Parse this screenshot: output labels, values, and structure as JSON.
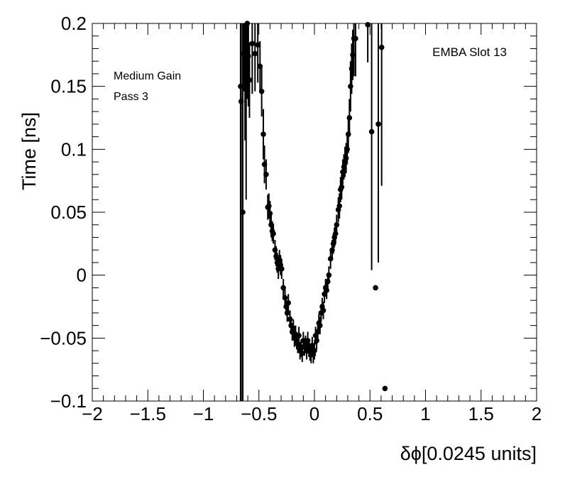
{
  "chart_data": {
    "type": "scatter",
    "title": "",
    "xlabel": "δϕ[0.0245 units]",
    "ylabel": "Time [ns]",
    "xlim": [
      -2,
      2
    ],
    "ylim": [
      -0.1,
      0.2
    ],
    "x_ticks": [
      "−2",
      "−1.5",
      "−1",
      "−0.5",
      "0",
      "0.5",
      "1",
      "1.5",
      "2"
    ],
    "y_ticks": [
      "−0.1",
      "−0.05",
      "0",
      "0.05",
      "0.1",
      "0.15",
      "0.2"
    ],
    "annotations": {
      "gain": "Medium Gain",
      "pass": "Pass 3",
      "slot": "EMBA Slot 13"
    },
    "grid": false,
    "legend": "none",
    "marker_color": "#000000",
    "points": [
      {
        "x": -0.665,
        "y": 0.15,
        "err": 0.3
      },
      {
        "x": -0.66,
        "y": 0.138,
        "err": 0.3
      },
      {
        "x": -0.645,
        "y": 0.05,
        "err": 0.3
      },
      {
        "x": -0.635,
        "y": 0.176,
        "err": 0.03
      },
      {
        "x": -0.625,
        "y": 0.197,
        "err": 0.09
      },
      {
        "x": -0.615,
        "y": 0.18,
        "err": 0.12
      },
      {
        "x": -0.605,
        "y": 0.2,
        "err": 0.06
      },
      {
        "x": -0.595,
        "y": 0.174,
        "err": 0.04
      },
      {
        "x": -0.585,
        "y": 0.155,
        "err": 0.03
      },
      {
        "x": -0.56,
        "y": 0.184,
        "err": 0.04
      },
      {
        "x": -0.535,
        "y": 0.176,
        "err": 0.03
      },
      {
        "x": -0.51,
        "y": 0.183,
        "err": 0.03
      },
      {
        "x": -0.49,
        "y": 0.166,
        "err": 0.02
      },
      {
        "x": -0.475,
        "y": 0.146,
        "err": 0.02
      },
      {
        "x": -0.46,
        "y": 0.112,
        "err": 0.02
      },
      {
        "x": -0.45,
        "y": 0.088,
        "err": 0.015
      },
      {
        "x": -0.435,
        "y": 0.08,
        "err": 0.012
      },
      {
        "x": -0.42,
        "y": 0.054,
        "err": 0.01
      },
      {
        "x": -0.41,
        "y": 0.055,
        "err": 0.01
      },
      {
        "x": -0.4,
        "y": 0.049,
        "err": 0.01
      },
      {
        "x": -0.39,
        "y": 0.04,
        "err": 0.01
      },
      {
        "x": -0.38,
        "y": 0.035,
        "err": 0.008
      },
      {
        "x": -0.37,
        "y": 0.033,
        "err": 0.008
      },
      {
        "x": -0.355,
        "y": 0.02,
        "err": 0.008
      },
      {
        "x": -0.345,
        "y": 0.015,
        "err": 0.008
      },
      {
        "x": -0.335,
        "y": 0.01,
        "err": 0.008
      },
      {
        "x": -0.325,
        "y": 0.005,
        "err": 0.008
      },
      {
        "x": -0.315,
        "y": 0.012,
        "err": 0.008
      },
      {
        "x": -0.305,
        "y": 0.008,
        "err": 0.008
      },
      {
        "x": -0.295,
        "y": 0.005,
        "err": 0.008
      },
      {
        "x": -0.28,
        "y": -0.01,
        "err": 0.007
      },
      {
        "x": -0.265,
        "y": -0.018,
        "err": 0.007
      },
      {
        "x": -0.255,
        "y": -0.025,
        "err": 0.007
      },
      {
        "x": -0.245,
        "y": -0.03,
        "err": 0.007
      },
      {
        "x": -0.235,
        "y": -0.022,
        "err": 0.007
      },
      {
        "x": -0.22,
        "y": -0.035,
        "err": 0.007
      },
      {
        "x": -0.21,
        "y": -0.04,
        "err": 0.007
      },
      {
        "x": -0.2,
        "y": -0.045,
        "err": 0.007
      },
      {
        "x": -0.19,
        "y": -0.042,
        "err": 0.007
      },
      {
        "x": -0.18,
        "y": -0.05,
        "err": 0.007
      },
      {
        "x": -0.17,
        "y": -0.047,
        "err": 0.007
      },
      {
        "x": -0.16,
        "y": -0.052,
        "err": 0.007
      },
      {
        "x": -0.15,
        "y": -0.055,
        "err": 0.007
      },
      {
        "x": -0.14,
        "y": -0.048,
        "err": 0.007
      },
      {
        "x": -0.13,
        "y": -0.06,
        "err": 0.007
      },
      {
        "x": -0.12,
        "y": -0.058,
        "err": 0.007
      },
      {
        "x": -0.11,
        "y": -0.062,
        "err": 0.007
      },
      {
        "x": -0.1,
        "y": -0.052,
        "err": 0.007
      },
      {
        "x": -0.09,
        "y": -0.057,
        "err": 0.007
      },
      {
        "x": -0.08,
        "y": -0.055,
        "err": 0.007
      },
      {
        "x": -0.07,
        "y": -0.06,
        "err": 0.007
      },
      {
        "x": -0.06,
        "y": -0.052,
        "err": 0.007
      },
      {
        "x": -0.05,
        "y": -0.058,
        "err": 0.007
      },
      {
        "x": -0.04,
        "y": -0.061,
        "err": 0.007
      },
      {
        "x": -0.03,
        "y": -0.063,
        "err": 0.007
      },
      {
        "x": -0.02,
        "y": -0.056,
        "err": 0.007
      },
      {
        "x": -0.01,
        "y": -0.063,
        "err": 0.007
      },
      {
        "x": 0.0,
        "y": -0.06,
        "err": 0.007
      },
      {
        "x": 0.01,
        "y": -0.048,
        "err": 0.007
      },
      {
        "x": 0.02,
        "y": -0.052,
        "err": 0.007
      },
      {
        "x": 0.03,
        "y": -0.045,
        "err": 0.007
      },
      {
        "x": 0.04,
        "y": -0.038,
        "err": 0.007
      },
      {
        "x": 0.05,
        "y": -0.04,
        "err": 0.007
      },
      {
        "x": 0.06,
        "y": -0.03,
        "err": 0.007
      },
      {
        "x": 0.07,
        "y": -0.025,
        "err": 0.007
      },
      {
        "x": 0.08,
        "y": -0.028,
        "err": 0.007
      },
      {
        "x": 0.09,
        "y": -0.015,
        "err": 0.007
      },
      {
        "x": 0.1,
        "y": -0.01,
        "err": 0.007
      },
      {
        "x": 0.11,
        "y": -0.012,
        "err": 0.007
      },
      {
        "x": 0.12,
        "y": -0.005,
        "err": 0.007
      },
      {
        "x": 0.13,
        "y": 0.0,
        "err": 0.007
      },
      {
        "x": 0.145,
        "y": 0.013,
        "err": 0.008
      },
      {
        "x": 0.16,
        "y": 0.02,
        "err": 0.008
      },
      {
        "x": 0.17,
        "y": 0.025,
        "err": 0.008
      },
      {
        "x": 0.18,
        "y": 0.03,
        "err": 0.008
      },
      {
        "x": 0.19,
        "y": 0.033,
        "err": 0.008
      },
      {
        "x": 0.2,
        "y": 0.04,
        "err": 0.008
      },
      {
        "x": 0.215,
        "y": 0.052,
        "err": 0.01
      },
      {
        "x": 0.225,
        "y": 0.055,
        "err": 0.01
      },
      {
        "x": 0.235,
        "y": 0.068,
        "err": 0.01
      },
      {
        "x": 0.245,
        "y": 0.07,
        "err": 0.01
      },
      {
        "x": 0.255,
        "y": 0.082,
        "err": 0.01
      },
      {
        "x": 0.265,
        "y": 0.086,
        "err": 0.01
      },
      {
        "x": 0.275,
        "y": 0.09,
        "err": 0.012
      },
      {
        "x": 0.285,
        "y": 0.093,
        "err": 0.012
      },
      {
        "x": 0.295,
        "y": 0.1,
        "err": 0.012
      },
      {
        "x": 0.305,
        "y": 0.112,
        "err": 0.015
      },
      {
        "x": 0.315,
        "y": 0.125,
        "err": 0.015
      },
      {
        "x": 0.325,
        "y": 0.15,
        "err": 0.02
      },
      {
        "x": 0.335,
        "y": 0.164,
        "err": 0.02
      },
      {
        "x": 0.345,
        "y": 0.175,
        "err": 0.02
      },
      {
        "x": 0.355,
        "y": 0.188,
        "err": 0.03
      },
      {
        "x": 0.37,
        "y": 0.188,
        "err": 0.03
      },
      {
        "x": 0.48,
        "y": 0.199,
        "err": 0.03
      },
      {
        "x": 0.515,
        "y": 0.114,
        "err": 0.11
      },
      {
        "x": 0.55,
        "y": -0.01,
        "err": 0.0
      },
      {
        "x": 0.575,
        "y": 0.12,
        "err": 0.11
      },
      {
        "x": 0.605,
        "y": 0.181,
        "err": 0.11
      },
      {
        "x": 0.635,
        "y": -0.09,
        "err": 0.0
      }
    ]
  }
}
